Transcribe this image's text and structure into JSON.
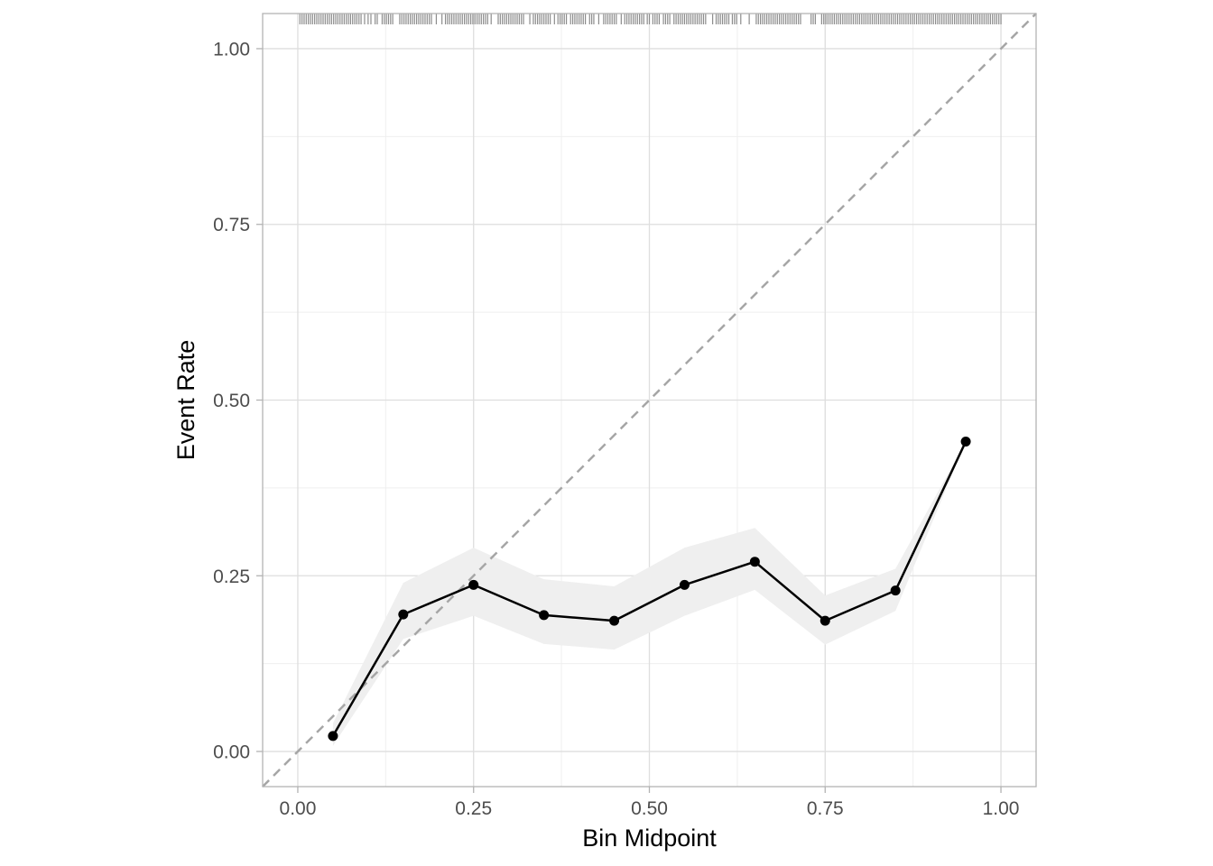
{
  "chart_data": {
    "type": "line",
    "title": "",
    "xlabel": "Bin Midpoint",
    "ylabel": "Event Rate",
    "xlim": [
      -0.05,
      1.05
    ],
    "ylim": [
      -0.05,
      1.05
    ],
    "x_ticks": [
      "0.00",
      "0.25",
      "0.50",
      "0.75",
      "1.00"
    ],
    "y_ticks": [
      "0.00",
      "0.25",
      "0.50",
      "0.75",
      "1.00"
    ],
    "grid": true,
    "reference_line": "y = x",
    "series": [
      {
        "x": [
          0.05,
          0.15,
          0.25,
          0.35,
          0.45,
          0.55,
          0.65,
          0.75,
          0.85,
          0.95
        ],
        "y": [
          0.022,
          0.195,
          0.237,
          0.194,
          0.186,
          0.237,
          0.27,
          0.186,
          0.229,
          0.441
        ],
        "lower": [
          0.008,
          0.16,
          0.193,
          0.153,
          0.145,
          0.193,
          0.23,
          0.152,
          0.2,
          0.441
        ],
        "upper": [
          0.04,
          0.24,
          0.29,
          0.245,
          0.235,
          0.29,
          0.318,
          0.222,
          0.26,
          0.441
        ]
      }
    ],
    "rug_x": [
      0.003,
      0.006,
      0.009,
      0.012,
      0.015,
      0.018,
      0.021,
      0.024,
      0.027,
      0.03,
      0.033,
      0.036,
      0.039,
      0.042,
      0.045,
      0.048,
      0.051,
      0.054,
      0.057,
      0.06,
      0.063,
      0.066,
      0.069,
      0.072,
      0.075,
      0.078,
      0.081,
      0.084,
      0.087,
      0.09,
      0.095,
      0.1,
      0.104,
      0.11,
      0.113,
      0.12,
      0.123,
      0.126,
      0.129,
      0.132,
      0.135,
      0.145,
      0.148,
      0.151,
      0.154,
      0.157,
      0.16,
      0.163,
      0.166,
      0.169,
      0.172,
      0.175,
      0.178,
      0.181,
      0.184,
      0.187,
      0.19,
      0.197,
      0.205,
      0.21,
      0.213,
      0.216,
      0.219,
      0.222,
      0.225,
      0.228,
      0.231,
      0.234,
      0.237,
      0.24,
      0.243,
      0.246,
      0.249,
      0.252,
      0.255,
      0.258,
      0.261,
      0.264,
      0.267,
      0.27,
      0.275,
      0.285,
      0.288,
      0.291,
      0.294,
      0.297,
      0.3,
      0.303,
      0.306,
      0.309,
      0.312,
      0.315,
      0.318,
      0.321,
      0.33,
      0.335,
      0.338,
      0.341,
      0.344,
      0.347,
      0.35,
      0.353,
      0.356,
      0.359,
      0.365,
      0.37,
      0.373,
      0.376,
      0.379,
      0.382,
      0.388,
      0.391,
      0.394,
      0.397,
      0.4,
      0.403,
      0.406,
      0.409,
      0.415,
      0.418,
      0.421,
      0.428,
      0.435,
      0.438,
      0.441,
      0.444,
      0.447,
      0.45,
      0.453,
      0.46,
      0.465,
      0.468,
      0.471,
      0.474,
      0.477,
      0.48,
      0.483,
      0.486,
      0.489,
      0.492,
      0.497,
      0.5,
      0.505,
      0.508,
      0.511,
      0.514,
      0.52,
      0.523,
      0.526,
      0.529,
      0.535,
      0.538,
      0.541,
      0.544,
      0.547,
      0.55,
      0.553,
      0.556,
      0.559,
      0.562,
      0.565,
      0.568,
      0.571,
      0.574,
      0.577,
      0.58,
      0.59,
      0.595,
      0.598,
      0.601,
      0.604,
      0.607,
      0.61,
      0.613,
      0.618,
      0.621,
      0.624,
      0.63,
      0.642,
      0.652,
      0.655,
      0.658,
      0.661,
      0.664,
      0.667,
      0.67,
      0.673,
      0.676,
      0.679,
      0.682,
      0.685,
      0.688,
      0.691,
      0.694,
      0.697,
      0.7,
      0.703,
      0.706,
      0.709,
      0.712,
      0.715,
      0.73,
      0.733,
      0.736,
      0.745,
      0.748,
      0.751,
      0.754,
      0.757,
      0.76,
      0.763,
      0.766,
      0.769,
      0.772,
      0.775,
      0.778,
      0.781,
      0.784,
      0.787,
      0.79,
      0.793,
      0.796,
      0.799,
      0.802,
      0.805,
      0.808,
      0.811,
      0.814,
      0.817,
      0.82,
      0.823,
      0.826,
      0.829,
      0.832,
      0.835,
      0.838,
      0.841,
      0.844,
      0.847,
      0.85,
      0.853,
      0.856,
      0.859,
      0.862,
      0.865,
      0.868,
      0.871,
      0.874,
      0.877,
      0.88,
      0.883,
      0.886,
      0.889,
      0.892,
      0.895,
      0.898,
      0.901,
      0.904,
      0.907,
      0.91,
      0.913,
      0.916,
      0.919,
      0.922,
      0.925,
      0.928,
      0.931,
      0.934,
      0.937,
      0.94,
      0.943,
      0.946,
      0.949,
      0.952,
      0.955,
      0.958,
      0.961,
      0.964,
      0.967,
      0.97,
      0.973,
      0.976,
      0.979,
      0.982,
      0.985,
      0.988,
      0.991,
      0.994,
      0.997,
      1.0
    ],
    "colors": {
      "panel_border": "#b3b3b3",
      "grid_major": "#dedede",
      "grid_minor": "#efefef",
      "ribbon": "#efefef",
      "line": "#000000",
      "point": "#000000",
      "reference": "#a6a6a6",
      "rug": "#8c8c8c"
    }
  }
}
